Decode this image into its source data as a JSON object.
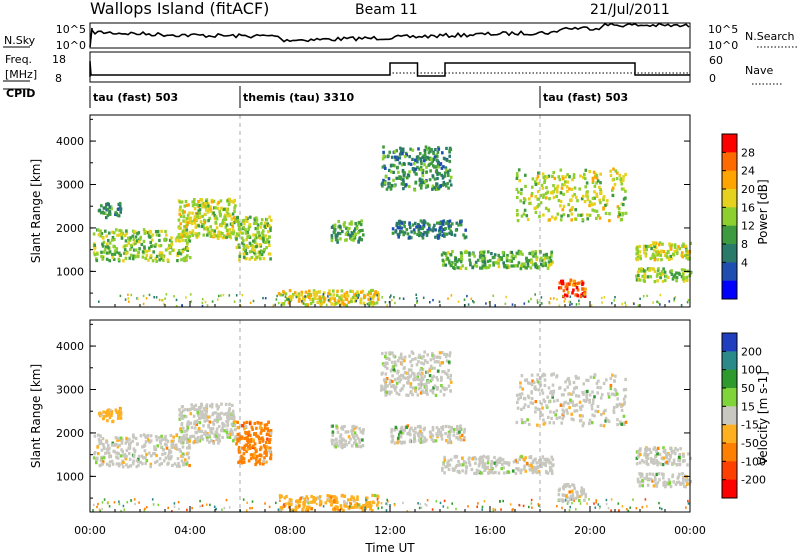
{
  "header": {
    "site": "Wallops Island (fitACF)",
    "beam": "Beam 11",
    "date": "21/Jul/2011"
  },
  "noise_panel": {
    "left_label": "N.Sky",
    "right_label": "N.Search",
    "left_ticks": [
      "10^5",
      "10^0"
    ],
    "right_ticks": [
      "10^5",
      "10^0"
    ]
  },
  "freq_panel": {
    "left_label_1": "Freq.",
    "left_label_2": "[MHz]",
    "right_label": "Nave",
    "left_ticks": [
      "18",
      "8"
    ],
    "right_ticks": [
      "60",
      "0"
    ]
  },
  "cpid": {
    "label": "CPID",
    "segments": [
      {
        "start_hour": 0,
        "label": "tau (fast) 503"
      },
      {
        "start_hour": 6,
        "label": "themis (tau) 3310"
      },
      {
        "start_hour": 18,
        "label": "tau (fast) 503"
      }
    ]
  },
  "power_panel": {
    "ylabel": "Slant Range [km]",
    "yticks": [
      "1000",
      "2000",
      "3000",
      "4000"
    ],
    "colorbar_label": "Power [dB]",
    "colorbar_ticks": [
      "28",
      "24",
      "20",
      "16",
      "12",
      "8",
      "4"
    ],
    "colorbar_colors": [
      "#ff0000",
      "#ff6a00",
      "#ffa500",
      "#e6d21e",
      "#8ccf2e",
      "#3e9a3e",
      "#2a7a6a",
      "#1e4fb0",
      "#0000ff"
    ]
  },
  "velocity_panel": {
    "ylabel": "Slant Range [km]",
    "yticks": [
      "1000",
      "2000",
      "3000",
      "4000"
    ],
    "colorbar_label": "Velocity [m s-1]",
    "colorbar_ticks": [
      "200",
      "100",
      "50",
      "15",
      "-15",
      "-50",
      "-100",
      "-200"
    ],
    "colorbar_colors": [
      "#1f3fbf",
      "#2a8a8a",
      "#2e9a2e",
      "#7fd43a",
      "#c8c8c0",
      "#ffb020",
      "#ff8000",
      "#ff4000",
      "#ff0000"
    ]
  },
  "xaxis": {
    "label": "Time UT",
    "ticks": [
      "00:00",
      "04:00",
      "08:00",
      "12:00",
      "16:00",
      "20:00",
      "00:00"
    ]
  },
  "chart_data": {
    "type": "heatmap",
    "x_range_hours": [
      0,
      24
    ],
    "y_range_km": [
      180,
      4600
    ],
    "echo_regions": [
      {
        "t0": 0.1,
        "t1": 4.0,
        "r0": 1250,
        "r1": 2000,
        "power": 14,
        "velocity": -5
      },
      {
        "t0": 0.3,
        "t1": 1.2,
        "r0": 2250,
        "r1": 2600,
        "power": 8,
        "velocity": -30
      },
      {
        "t0": 3.5,
        "t1": 5.8,
        "r0": 1800,
        "r1": 2700,
        "power": 16,
        "velocity": -10
      },
      {
        "t0": 5.8,
        "t1": 7.2,
        "r0": 1300,
        "r1": 2300,
        "power": 14,
        "velocity": -60
      },
      {
        "t0": 7.5,
        "t1": 11.5,
        "r0": 250,
        "r1": 600,
        "power": 18,
        "velocity": -40
      },
      {
        "t0": 9.6,
        "t1": 10.9,
        "r0": 1700,
        "r1": 2200,
        "power": 10,
        "velocity": 10
      },
      {
        "t0": 11.6,
        "t1": 14.4,
        "r0": 2900,
        "r1": 3900,
        "power": 8,
        "velocity": 5
      },
      {
        "t0": 12.0,
        "t1": 15.0,
        "r0": 1800,
        "r1": 2200,
        "power": 6,
        "velocity": 5
      },
      {
        "t0": 14.0,
        "t1": 18.5,
        "r0": 1100,
        "r1": 1500,
        "power": 12,
        "velocity": 0
      },
      {
        "t0": 17.0,
        "t1": 21.4,
        "r0": 2200,
        "r1": 3400,
        "power": 16,
        "velocity": 0
      },
      {
        "t0": 18.7,
        "t1": 19.8,
        "r0": 450,
        "r1": 850,
        "power": 28,
        "velocity": 0
      },
      {
        "t0": 21.8,
        "t1": 24.0,
        "r0": 1300,
        "r1": 1700,
        "power": 16,
        "velocity": 0
      },
      {
        "t0": 21.8,
        "t1": 24.0,
        "r0": 800,
        "r1": 1100,
        "power": 14,
        "velocity": 0
      }
    ]
  }
}
